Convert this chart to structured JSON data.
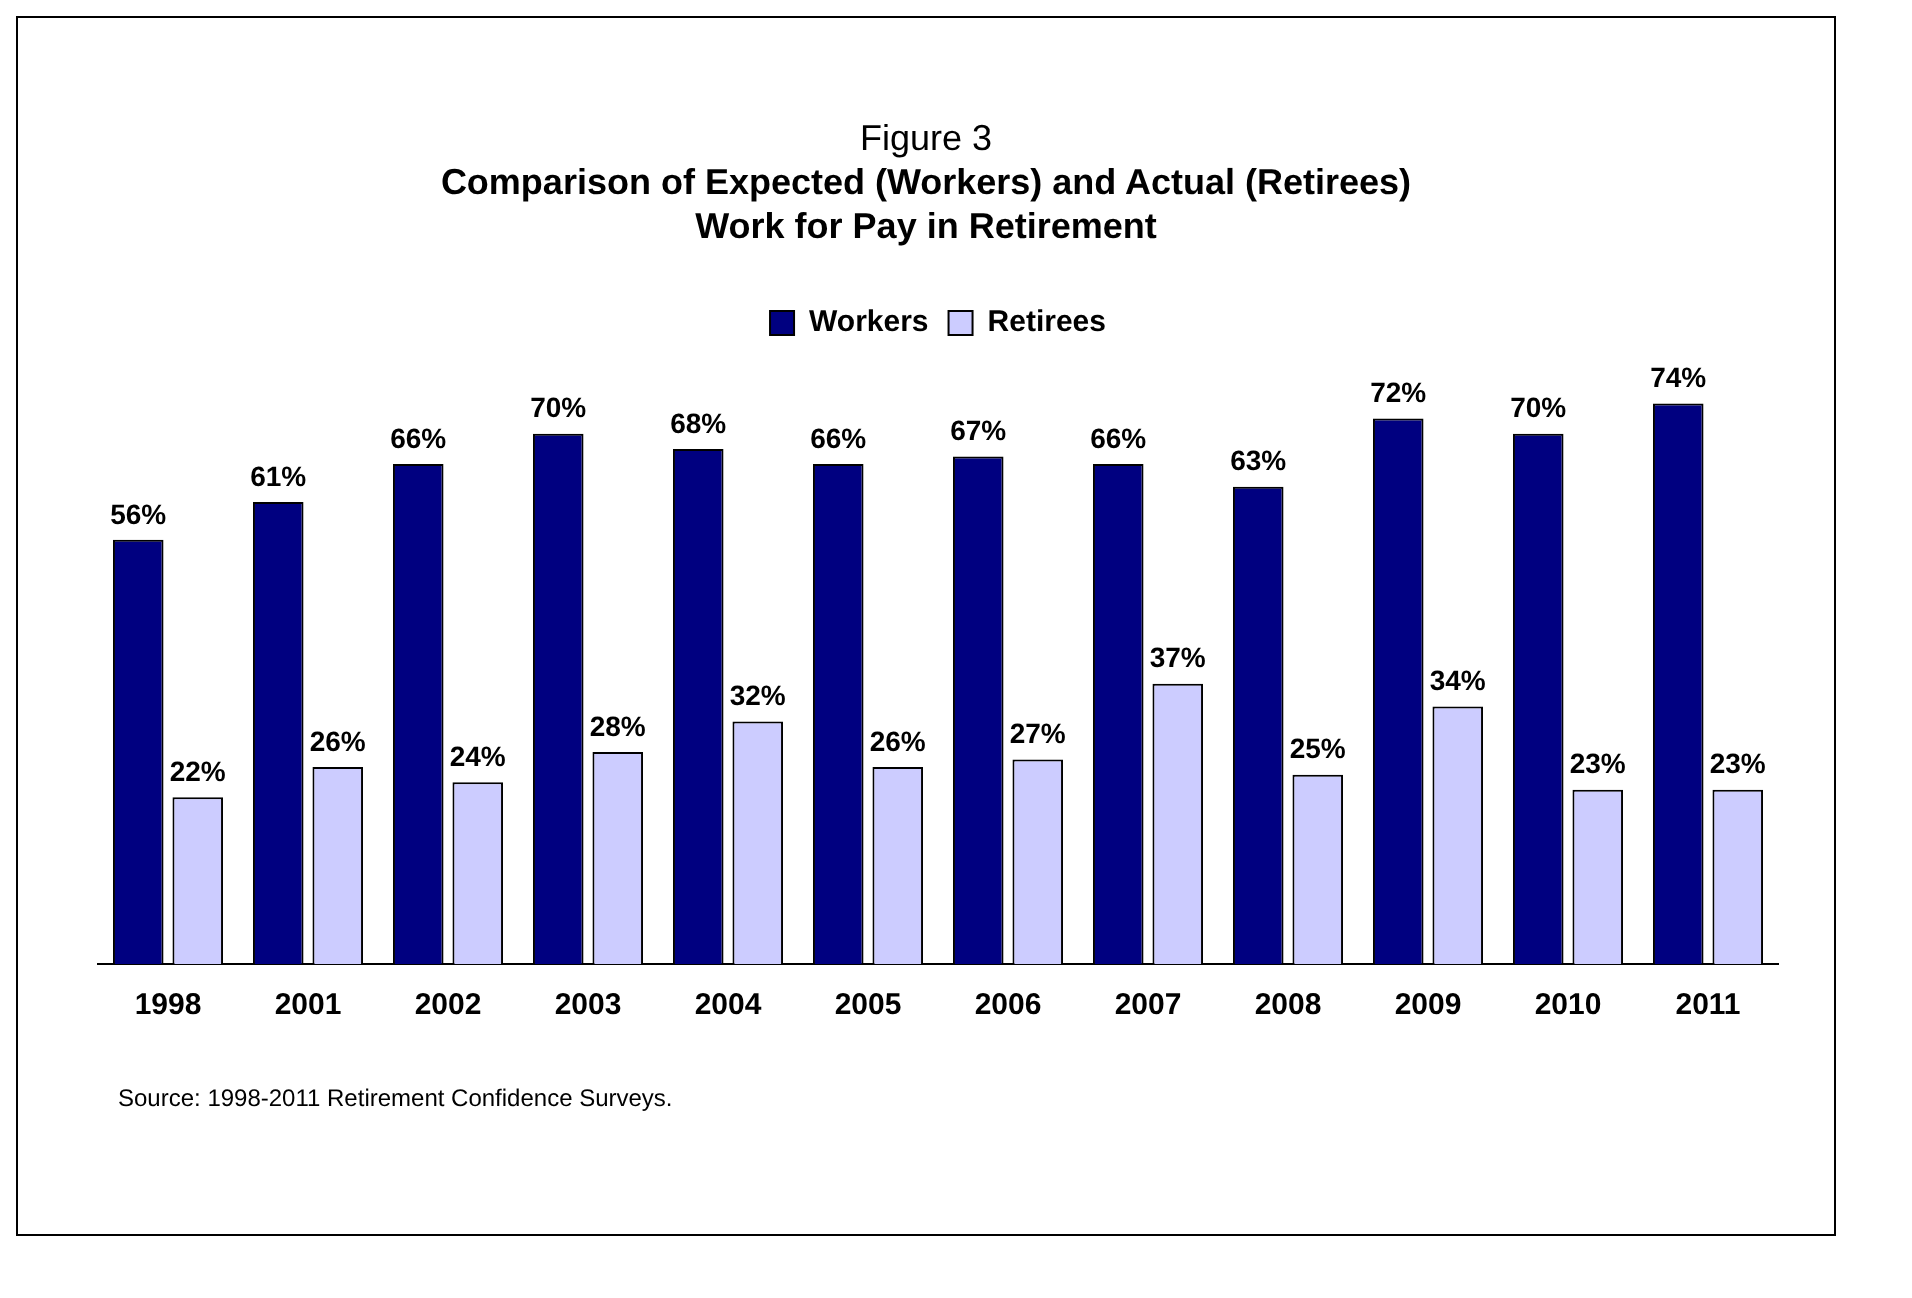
{
  "chart_data": {
    "type": "bar",
    "title": "Figure 3",
    "subtitle": "Comparison of Expected (Workers) and Actual (Retirees)\nWork for Pay in Retirement",
    "categories": [
      "1998",
      "2001",
      "2002",
      "2003",
      "2004",
      "2005",
      "2006",
      "2007",
      "2008",
      "2009",
      "2010",
      "2011"
    ],
    "series": [
      {
        "name": "Workers",
        "color": "#000080",
        "values": [
          56,
          61,
          66,
          70,
          68,
          66,
          67,
          66,
          63,
          72,
          70,
          74
        ],
        "value_labels": [
          "56%",
          "61%",
          "66%",
          "70%",
          "68%",
          "66%",
          "67%",
          "66%",
          "63%",
          "72%",
          "70%",
          "74%"
        ]
      },
      {
        "name": "Retirees",
        "color": "#ccccff",
        "values": [
          22,
          26,
          24,
          28,
          32,
          26,
          27,
          37,
          25,
          34,
          23,
          23
        ],
        "value_labels": [
          "22%",
          "26%",
          "24%",
          "28%",
          "32%",
          "26%",
          "27%",
          "37%",
          "25%",
          "34%",
          "23%",
          "23%"
        ]
      }
    ],
    "legend": "top",
    "grid": false,
    "tick_labels": "x",
    "annotations": [
      "Source: 1998-2011 Retirement Confidence Surveys."
    ]
  }
}
